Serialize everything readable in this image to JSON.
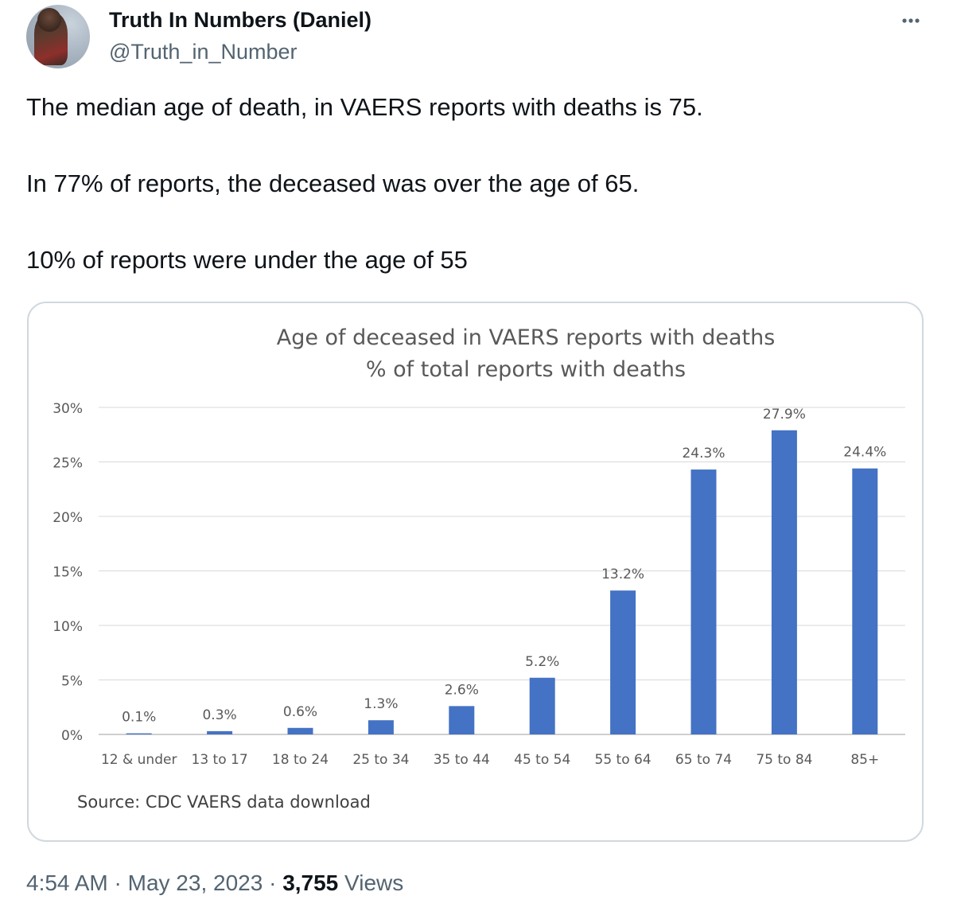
{
  "author": {
    "display_name": "Truth In Numbers (Daniel)",
    "handle": "@Truth_in_Number"
  },
  "menu_icon": "more-horizontal-icon",
  "tweet": {
    "paragraphs": [
      "The median age of death, in VAERS reports with deaths is 75.",
      "In 77% of reports, the deceased was over the age of 65.",
      "10% of reports were under the age of 55"
    ]
  },
  "chart_data": {
    "type": "bar",
    "title": "Age of deceased  in VAERS reports with deaths",
    "subtitle": "% of total reports with deaths",
    "source": "Source: CDC VAERS data download",
    "categories": [
      "12 & under",
      "13 to 17",
      "18 to 24",
      "25 to 34",
      "35 to 44",
      "45 to 54",
      "55 to 64",
      "65 to 74",
      "75 to 84",
      "85+"
    ],
    "values": [
      0.1,
      0.3,
      0.6,
      1.3,
      2.6,
      5.2,
      13.2,
      24.3,
      27.9,
      24.4
    ],
    "data_labels": [
      "0.1%",
      "0.3%",
      "0.6%",
      "1.3%",
      "2.6%",
      "5.2%",
      "13.2%",
      "24.3%",
      "27.9%",
      "24.4%"
    ],
    "ylim": [
      0,
      30
    ],
    "yticks": [
      0,
      5,
      10,
      15,
      20,
      25,
      30
    ],
    "ytick_labels": [
      "0%",
      "5%",
      "10%",
      "15%",
      "20%",
      "25%",
      "30%"
    ],
    "bar_color": "#4472c4",
    "grid": true,
    "legend": "none"
  },
  "meta": {
    "time": "4:54 AM",
    "separator": "·",
    "date": "May 23, 2023",
    "views_count": "3,755",
    "views_label": "Views"
  }
}
